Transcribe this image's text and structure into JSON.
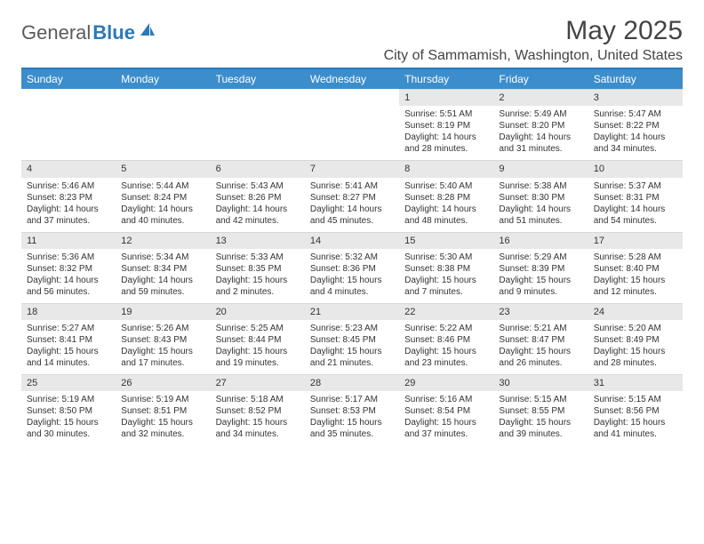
{
  "logo": {
    "text_a": "General",
    "text_b": "Blue"
  },
  "header": {
    "title": "May 2025",
    "location": "City of Sammamish, Washington, United States"
  },
  "colors": {
    "header_bar": "#3c8dcc",
    "accent": "#2a7ab9",
    "daynum_bg": "#e8e8e8",
    "text": "#333333",
    "background": "#ffffff"
  },
  "weekdays": [
    "Sunday",
    "Monday",
    "Tuesday",
    "Wednesday",
    "Thursday",
    "Friday",
    "Saturday"
  ],
  "weeks": [
    [
      {
        "empty": true
      },
      {
        "empty": true
      },
      {
        "empty": true
      },
      {
        "empty": true
      },
      {
        "n": "1",
        "sunrise": "Sunrise: 5:51 AM",
        "sunset": "Sunset: 8:19 PM",
        "daylight": "Daylight: 14 hours and 28 minutes."
      },
      {
        "n": "2",
        "sunrise": "Sunrise: 5:49 AM",
        "sunset": "Sunset: 8:20 PM",
        "daylight": "Daylight: 14 hours and 31 minutes."
      },
      {
        "n": "3",
        "sunrise": "Sunrise: 5:47 AM",
        "sunset": "Sunset: 8:22 PM",
        "daylight": "Daylight: 14 hours and 34 minutes."
      }
    ],
    [
      {
        "n": "4",
        "sunrise": "Sunrise: 5:46 AM",
        "sunset": "Sunset: 8:23 PM",
        "daylight": "Daylight: 14 hours and 37 minutes."
      },
      {
        "n": "5",
        "sunrise": "Sunrise: 5:44 AM",
        "sunset": "Sunset: 8:24 PM",
        "daylight": "Daylight: 14 hours and 40 minutes."
      },
      {
        "n": "6",
        "sunrise": "Sunrise: 5:43 AM",
        "sunset": "Sunset: 8:26 PM",
        "daylight": "Daylight: 14 hours and 42 minutes."
      },
      {
        "n": "7",
        "sunrise": "Sunrise: 5:41 AM",
        "sunset": "Sunset: 8:27 PM",
        "daylight": "Daylight: 14 hours and 45 minutes."
      },
      {
        "n": "8",
        "sunrise": "Sunrise: 5:40 AM",
        "sunset": "Sunset: 8:28 PM",
        "daylight": "Daylight: 14 hours and 48 minutes."
      },
      {
        "n": "9",
        "sunrise": "Sunrise: 5:38 AM",
        "sunset": "Sunset: 8:30 PM",
        "daylight": "Daylight: 14 hours and 51 minutes."
      },
      {
        "n": "10",
        "sunrise": "Sunrise: 5:37 AM",
        "sunset": "Sunset: 8:31 PM",
        "daylight": "Daylight: 14 hours and 54 minutes."
      }
    ],
    [
      {
        "n": "11",
        "sunrise": "Sunrise: 5:36 AM",
        "sunset": "Sunset: 8:32 PM",
        "daylight": "Daylight: 14 hours and 56 minutes."
      },
      {
        "n": "12",
        "sunrise": "Sunrise: 5:34 AM",
        "sunset": "Sunset: 8:34 PM",
        "daylight": "Daylight: 14 hours and 59 minutes."
      },
      {
        "n": "13",
        "sunrise": "Sunrise: 5:33 AM",
        "sunset": "Sunset: 8:35 PM",
        "daylight": "Daylight: 15 hours and 2 minutes."
      },
      {
        "n": "14",
        "sunrise": "Sunrise: 5:32 AM",
        "sunset": "Sunset: 8:36 PM",
        "daylight": "Daylight: 15 hours and 4 minutes."
      },
      {
        "n": "15",
        "sunrise": "Sunrise: 5:30 AM",
        "sunset": "Sunset: 8:38 PM",
        "daylight": "Daylight: 15 hours and 7 minutes."
      },
      {
        "n": "16",
        "sunrise": "Sunrise: 5:29 AM",
        "sunset": "Sunset: 8:39 PM",
        "daylight": "Daylight: 15 hours and 9 minutes."
      },
      {
        "n": "17",
        "sunrise": "Sunrise: 5:28 AM",
        "sunset": "Sunset: 8:40 PM",
        "daylight": "Daylight: 15 hours and 12 minutes."
      }
    ],
    [
      {
        "n": "18",
        "sunrise": "Sunrise: 5:27 AM",
        "sunset": "Sunset: 8:41 PM",
        "daylight": "Daylight: 15 hours and 14 minutes."
      },
      {
        "n": "19",
        "sunrise": "Sunrise: 5:26 AM",
        "sunset": "Sunset: 8:43 PM",
        "daylight": "Daylight: 15 hours and 17 minutes."
      },
      {
        "n": "20",
        "sunrise": "Sunrise: 5:25 AM",
        "sunset": "Sunset: 8:44 PM",
        "daylight": "Daylight: 15 hours and 19 minutes."
      },
      {
        "n": "21",
        "sunrise": "Sunrise: 5:23 AM",
        "sunset": "Sunset: 8:45 PM",
        "daylight": "Daylight: 15 hours and 21 minutes."
      },
      {
        "n": "22",
        "sunrise": "Sunrise: 5:22 AM",
        "sunset": "Sunset: 8:46 PM",
        "daylight": "Daylight: 15 hours and 23 minutes."
      },
      {
        "n": "23",
        "sunrise": "Sunrise: 5:21 AM",
        "sunset": "Sunset: 8:47 PM",
        "daylight": "Daylight: 15 hours and 26 minutes."
      },
      {
        "n": "24",
        "sunrise": "Sunrise: 5:20 AM",
        "sunset": "Sunset: 8:49 PM",
        "daylight": "Daylight: 15 hours and 28 minutes."
      }
    ],
    [
      {
        "n": "25",
        "sunrise": "Sunrise: 5:19 AM",
        "sunset": "Sunset: 8:50 PM",
        "daylight": "Daylight: 15 hours and 30 minutes."
      },
      {
        "n": "26",
        "sunrise": "Sunrise: 5:19 AM",
        "sunset": "Sunset: 8:51 PM",
        "daylight": "Daylight: 15 hours and 32 minutes."
      },
      {
        "n": "27",
        "sunrise": "Sunrise: 5:18 AM",
        "sunset": "Sunset: 8:52 PM",
        "daylight": "Daylight: 15 hours and 34 minutes."
      },
      {
        "n": "28",
        "sunrise": "Sunrise: 5:17 AM",
        "sunset": "Sunset: 8:53 PM",
        "daylight": "Daylight: 15 hours and 35 minutes."
      },
      {
        "n": "29",
        "sunrise": "Sunrise: 5:16 AM",
        "sunset": "Sunset: 8:54 PM",
        "daylight": "Daylight: 15 hours and 37 minutes."
      },
      {
        "n": "30",
        "sunrise": "Sunrise: 5:15 AM",
        "sunset": "Sunset: 8:55 PM",
        "daylight": "Daylight: 15 hours and 39 minutes."
      },
      {
        "n": "31",
        "sunrise": "Sunrise: 5:15 AM",
        "sunset": "Sunset: 8:56 PM",
        "daylight": "Daylight: 15 hours and 41 minutes."
      }
    ]
  ]
}
